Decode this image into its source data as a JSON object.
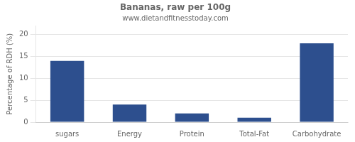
{
  "chart_data": {
    "type": "bar",
    "title": "Bananas, raw per 100g",
    "subtitle": "www.dietandfitnesstoday.com",
    "ylabel": "Percentage of RDH (%)",
    "categories": [
      "sugars",
      "Energy",
      "Protein",
      "Total-Fat",
      "Carbohydrate"
    ],
    "values": [
      14,
      4,
      2,
      1,
      18
    ],
    "color": "#2d4f8e",
    "ylim": [
      0,
      22
    ],
    "yticks": [
      0,
      5,
      10,
      15,
      20
    ],
    "grid": true
  }
}
